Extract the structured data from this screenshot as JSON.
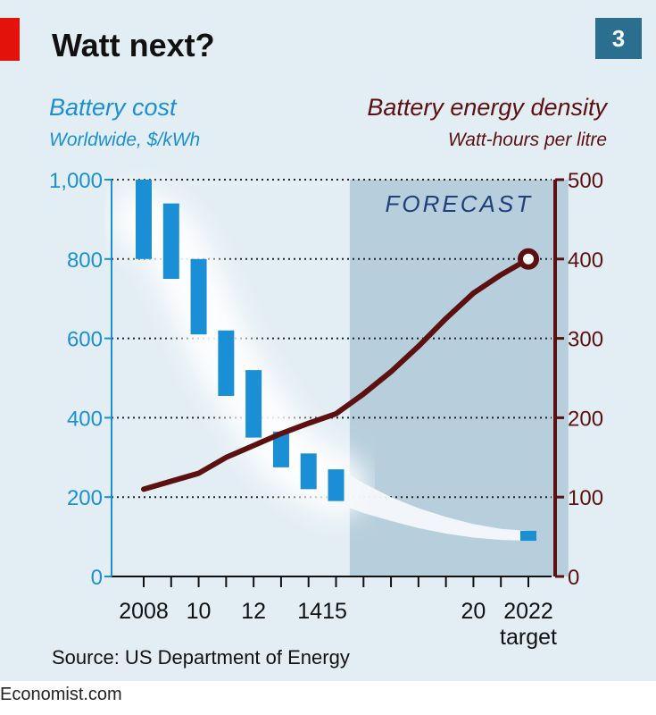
{
  "header": {
    "title": "Watt next?",
    "badge": "3"
  },
  "chart_data": {
    "type": "bar+line",
    "left_axis": {
      "title": "Battery cost",
      "subtitle": "Worldwide, $/kWh",
      "ticks": [
        0,
        200,
        400,
        600,
        800,
        1000
      ],
      "tick_labels": [
        "0",
        "200",
        "400",
        "600",
        "800",
        "1,000"
      ],
      "ylim": [
        0,
        1000
      ],
      "color": "#1a8fd6"
    },
    "right_axis": {
      "title": "Battery energy density",
      "subtitle": "Watt-hours per litre",
      "ticks": [
        0,
        100,
        200,
        300,
        400,
        500
      ],
      "tick_labels": [
        "0",
        "100",
        "200",
        "300",
        "400",
        "500"
      ],
      "ylim": [
        0,
        500
      ],
      "color": "#5c1010"
    },
    "x_axis": {
      "xlim": [
        2007.5,
        2023.5
      ],
      "ticks": [
        2008,
        2009,
        2010,
        2011,
        2012,
        2013,
        2014,
        2015,
        2016,
        2017,
        2018,
        2019,
        2020,
        2021,
        2022
      ],
      "labels": [
        {
          "x": 2008,
          "text": "2008"
        },
        {
          "x": 2010,
          "text": "10"
        },
        {
          "x": 2012,
          "text": "12"
        },
        {
          "x": 2014.5,
          "text": "1415"
        },
        {
          "x": 2020,
          "text": "20"
        },
        {
          "x": 2022,
          "text": "2022"
        }
      ],
      "sublabel": {
        "x": 2022,
        "text": "target"
      }
    },
    "forecast": {
      "label": "FORECAST",
      "from": 2015.5,
      "to": 2023
    },
    "cost_ranges": {
      "name": "Battery cost range",
      "data": [
        {
          "year": 2008,
          "low": 800,
          "high": 1000
        },
        {
          "year": 2009,
          "low": 750,
          "high": 940
        },
        {
          "year": 2010,
          "low": 610,
          "high": 800
        },
        {
          "year": 2011,
          "low": 455,
          "high": 620
        },
        {
          "year": 2012,
          "low": 350,
          "high": 520
        },
        {
          "year": 2013,
          "low": 275,
          "high": 365
        },
        {
          "year": 2014,
          "low": 220,
          "high": 310
        },
        {
          "year": 2015,
          "low": 190,
          "high": 270
        },
        {
          "year": 2022,
          "low": 90,
          "high": 115
        }
      ]
    },
    "cost_forecast_band": {
      "x": [
        2015,
        2016,
        2017,
        2018,
        2019,
        2020,
        2021,
        2022
      ],
      "low": [
        185,
        160,
        140,
        122,
        108,
        98,
        92,
        90
      ],
      "high": [
        275,
        235,
        200,
        172,
        150,
        132,
        120,
        115
      ]
    },
    "energy_density": {
      "name": "Battery energy density",
      "x": [
        2008,
        2009,
        2010,
        2011,
        2012,
        2013,
        2014,
        2015,
        2016,
        2017,
        2018,
        2019,
        2020,
        2021,
        2022
      ],
      "y": [
        110,
        120,
        130,
        150,
        165,
        180,
        193,
        205,
        230,
        258,
        290,
        325,
        357,
        380,
        400
      ],
      "target": {
        "x": 2022,
        "y": 400
      }
    }
  },
  "source": "Source: US Department of Energy",
  "footer": "Economist.com"
}
